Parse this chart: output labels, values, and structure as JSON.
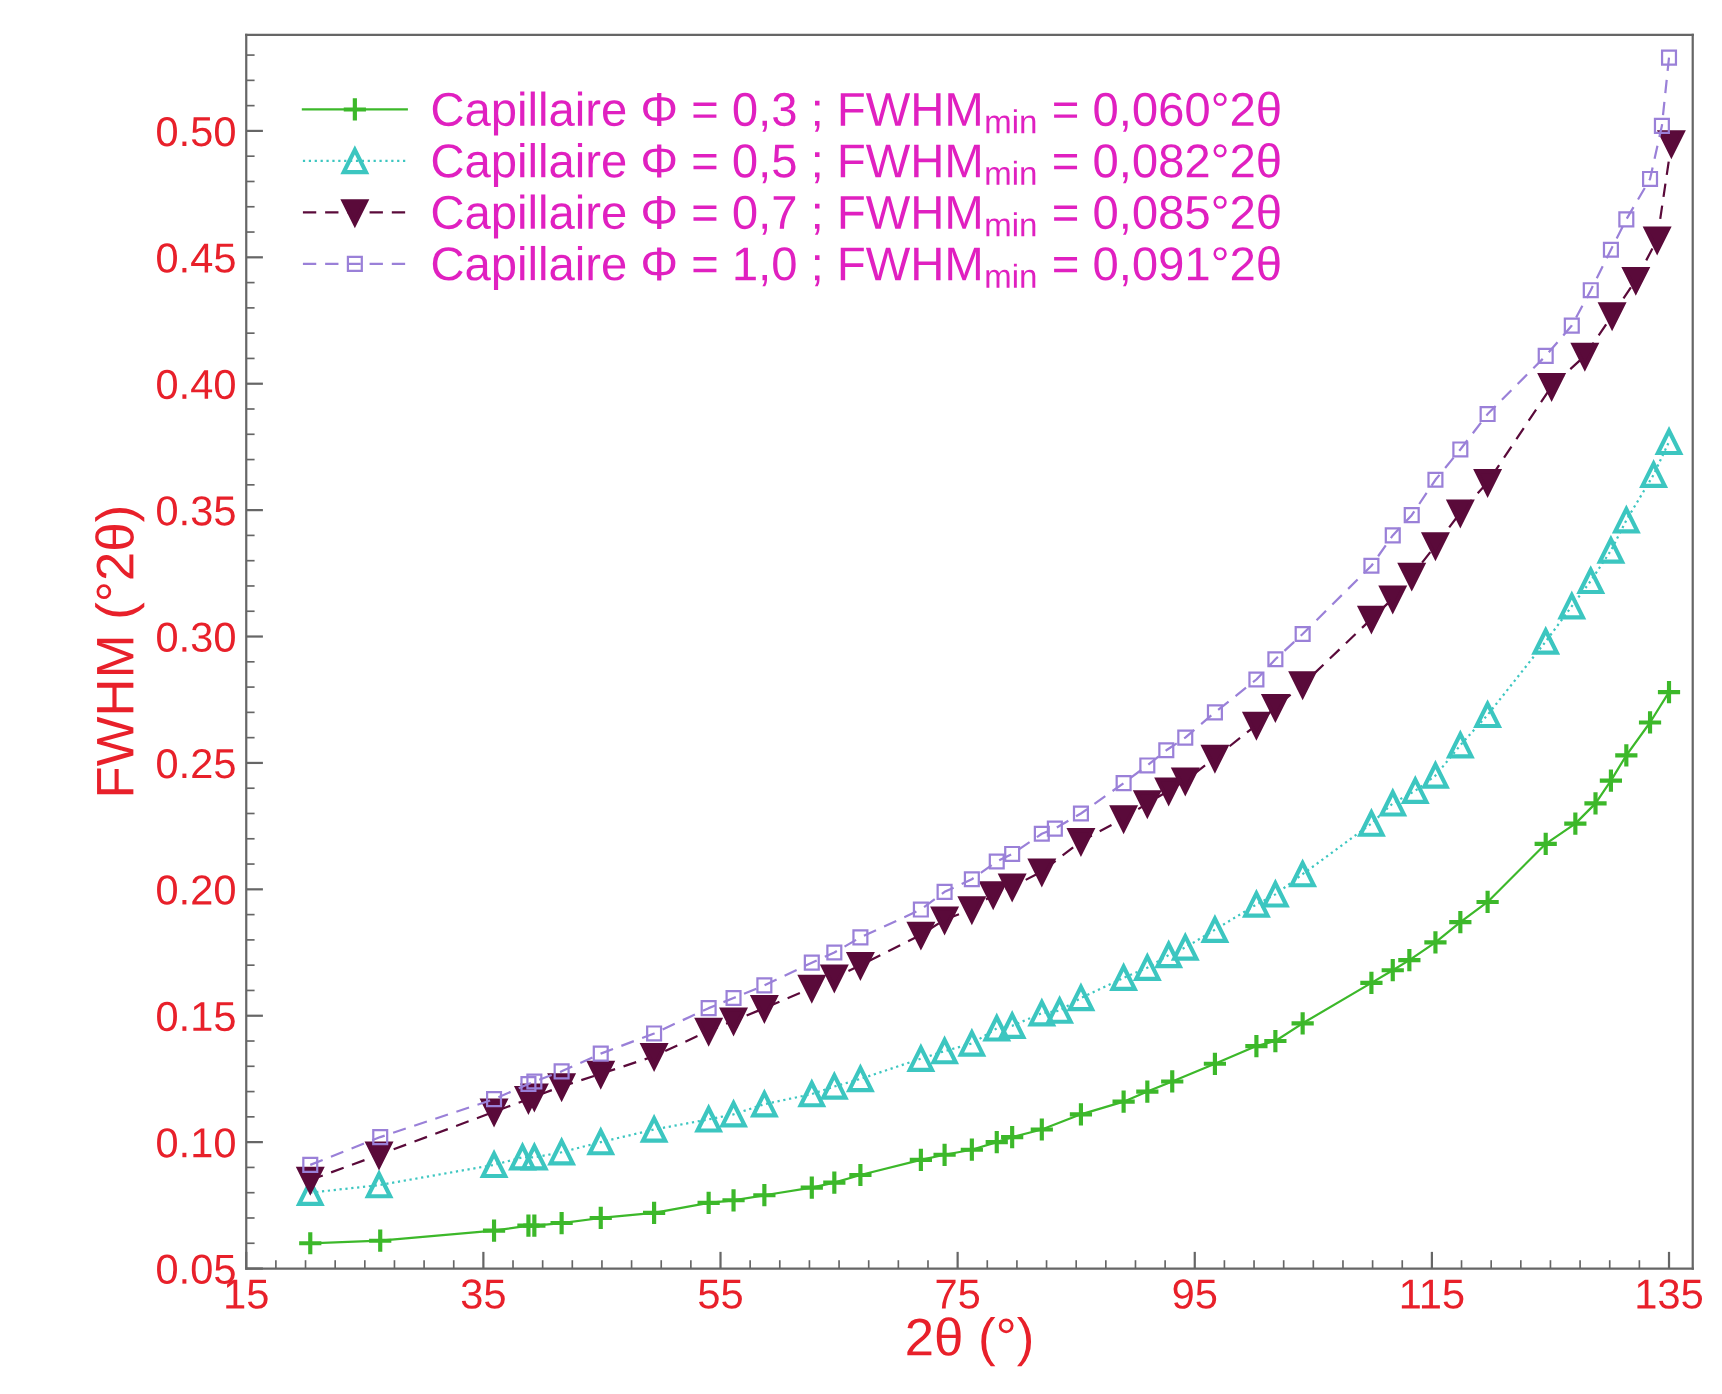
{
  "chart_data": {
    "type": "line",
    "xlabel": "2θ (°)",
    "ylabel": "FWHM (°2θ)",
    "xlim": [
      15,
      137
    ],
    "ylim": [
      0.05,
      0.538
    ],
    "xticks": [
      15,
      35,
      55,
      75,
      95,
      115,
      135
    ],
    "yticks": [
      {
        "value": 0.05,
        "label": "0.05"
      },
      {
        "value": 0.1,
        "label": "0.10"
      },
      {
        "value": 0.15,
        "label": "0.15"
      },
      {
        "value": 0.2,
        "label": "0.20"
      },
      {
        "value": 0.25,
        "label": "0.25"
      },
      {
        "value": 0.3,
        "label": "0.30"
      },
      {
        "value": 0.35,
        "label": "0.35"
      },
      {
        "value": 0.4,
        "label": "0.40"
      },
      {
        "value": 0.45,
        "label": "0.45"
      },
      {
        "value": 0.5,
        "label": "0.50"
      }
    ],
    "grid": false,
    "legend": "top left",
    "series": [
      {
        "name": "Capillaire Φ = 0,3 ; FWHM$_{min}$ = 0,060°2θ",
        "color": "#3cb82a",
        "marker": "cross",
        "line_style": "solid",
        "x": [
          20.4,
          26.3,
          35.9,
          38.8,
          39.3,
          41.6,
          44.9,
          49.4,
          54.0,
          56.1,
          58.7,
          62.7,
          64.6,
          66.8,
          71.9,
          73.9,
          76.2,
          78.3,
          79.6,
          82.1,
          85.4,
          89.0,
          91.0,
          93.1,
          96.7,
          100.2,
          101.8,
          104.1,
          109.9,
          111.7,
          113.1,
          115.3,
          117.4,
          119.7,
          124.6,
          127.1,
          128.8,
          130.1,
          131.4,
          133.4,
          135.0
        ],
        "values": [
          0.06,
          0.061,
          0.065,
          0.067,
          0.067,
          0.068,
          0.07,
          0.072,
          0.076,
          0.077,
          0.079,
          0.082,
          0.084,
          0.087,
          0.093,
          0.095,
          0.097,
          0.1,
          0.102,
          0.105,
          0.111,
          0.116,
          0.12,
          0.124,
          0.131,
          0.138,
          0.14,
          0.147,
          0.163,
          0.168,
          0.172,
          0.179,
          0.187,
          0.195,
          0.218,
          0.226,
          0.234,
          0.243,
          0.253,
          0.266,
          0.278
        ]
      },
      {
        "name": "Capillaire Φ = 0,5 ; FWHM$_{min}$ = 0,082°2θ",
        "color": "#3cc6c0",
        "marker": "triangle",
        "line_style": "dotted",
        "x": [
          20.4,
          26.2,
          35.9,
          38.3,
          39.3,
          41.6,
          44.9,
          49.4,
          54.0,
          56.1,
          58.7,
          62.7,
          64.6,
          66.8,
          71.9,
          73.9,
          76.2,
          78.3,
          79.6,
          82.1,
          83.6,
          85.4,
          89.0,
          91.0,
          92.8,
          94.2,
          96.7,
          100.2,
          101.8,
          104.1,
          109.9,
          111.7,
          113.6,
          115.3,
          117.4,
          119.7,
          124.6,
          126.8,
          128.4,
          130.1,
          131.4,
          133.7,
          135.0
        ],
        "values": [
          0.08,
          0.083,
          0.091,
          0.094,
          0.094,
          0.096,
          0.1,
          0.105,
          0.109,
          0.111,
          0.115,
          0.119,
          0.122,
          0.125,
          0.133,
          0.136,
          0.139,
          0.145,
          0.146,
          0.151,
          0.152,
          0.157,
          0.165,
          0.169,
          0.174,
          0.177,
          0.184,
          0.194,
          0.198,
          0.206,
          0.226,
          0.234,
          0.239,
          0.245,
          0.257,
          0.269,
          0.298,
          0.312,
          0.322,
          0.334,
          0.346,
          0.364,
          0.377
        ]
      },
      {
        "name": "Capillaire Φ = 0,7 ; FWHM$_{min}$ = 0,085°2θ",
        "color": "#5a0a3a",
        "marker": "triangle_down",
        "line_style": "dashed",
        "x": [
          20.4,
          26.2,
          35.9,
          38.8,
          39.3,
          41.6,
          44.9,
          49.4,
          54.0,
          56.1,
          58.7,
          62.7,
          64.6,
          66.8,
          71.9,
          73.9,
          76.2,
          78.0,
          79.6,
          82.1,
          85.4,
          89.0,
          91.0,
          92.8,
          94.2,
          96.7,
          100.2,
          101.8,
          104.1,
          109.9,
          111.7,
          113.3,
          115.3,
          117.4,
          119.7,
          125.1,
          127.9,
          130.2,
          132.2,
          134.0,
          135.2
        ],
        "values": [
          0.085,
          0.095,
          0.112,
          0.117,
          0.118,
          0.122,
          0.127,
          0.134,
          0.144,
          0.148,
          0.153,
          0.161,
          0.165,
          0.17,
          0.182,
          0.188,
          0.192,
          0.198,
          0.201,
          0.207,
          0.219,
          0.228,
          0.234,
          0.239,
          0.243,
          0.252,
          0.265,
          0.272,
          0.281,
          0.307,
          0.315,
          0.324,
          0.336,
          0.349,
          0.361,
          0.399,
          0.411,
          0.427,
          0.441,
          0.457,
          0.495
        ]
      },
      {
        "name": "Capillaire Φ = 1,0 ; FWHM$_{min}$ = 0,091°2θ",
        "color": "#9a80d8",
        "marker": "square",
        "line_style": "dashed",
        "x": [
          20.4,
          26.3,
          35.9,
          38.8,
          39.3,
          41.6,
          44.9,
          49.4,
          54.0,
          56.1,
          58.7,
          62.7,
          64.6,
          66.8,
          71.9,
          73.9,
          76.2,
          78.3,
          79.6,
          82.1,
          83.2,
          85.4,
          89.0,
          91.0,
          92.6,
          94.2,
          96.7,
          100.2,
          101.8,
          104.1,
          109.9,
          111.7,
          113.3,
          115.3,
          117.4,
          119.7,
          124.6,
          126.8,
          128.4,
          130.1,
          131.4,
          133.4,
          134.4,
          135.0
        ],
        "values": [
          0.091,
          0.102,
          0.117,
          0.123,
          0.124,
          0.128,
          0.135,
          0.143,
          0.153,
          0.157,
          0.162,
          0.171,
          0.175,
          0.181,
          0.192,
          0.199,
          0.204,
          0.211,
          0.214,
          0.222,
          0.224,
          0.23,
          0.242,
          0.249,
          0.255,
          0.26,
          0.27,
          0.283,
          0.291,
          0.301,
          0.328,
          0.34,
          0.348,
          0.362,
          0.374,
          0.388,
          0.411,
          0.423,
          0.437,
          0.453,
          0.465,
          0.481,
          0.502,
          0.529
        ]
      }
    ]
  }
}
